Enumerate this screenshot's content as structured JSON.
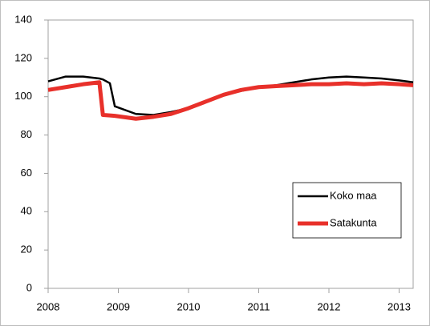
{
  "chart_data": {
    "type": "line",
    "x": [
      2008,
      2008.25,
      2008.5,
      2008.73,
      2008.78,
      2008.88,
      2008.95,
      2009.25,
      2009.5,
      2009.75,
      2010,
      2010.25,
      2010.5,
      2010.75,
      2011,
      2011.25,
      2011.5,
      2011.75,
      2012,
      2012.25,
      2012.5,
      2012.75,
      2013,
      2013.2
    ],
    "series": [
      {
        "name": "Koko maa",
        "color": "#000000",
        "values": [
          108,
          110.5,
          110.5,
          109.5,
          109,
          107,
          95,
          91,
          90.5,
          92,
          94,
          97.5,
          101,
          103,
          105,
          106,
          107.5,
          109,
          110,
          110.5,
          110,
          109.5,
          108.5,
          107.5
        ]
      },
      {
        "name": "Satakunta",
        "color": "#e8302a",
        "values": [
          103.5,
          105,
          106.5,
          107.5,
          90.5,
          90.2,
          90,
          88.5,
          89.5,
          91,
          94,
          97.5,
          101,
          103.5,
          105,
          105.5,
          106,
          106.5,
          106.5,
          107,
          106.5,
          107,
          106.5,
          106
        ]
      }
    ],
    "xlim": [
      2008,
      2013.2
    ],
    "xticks": [
      2008,
      2009,
      2010,
      2011,
      2012,
      2013
    ],
    "ylim": [
      0,
      140
    ],
    "yticks": [
      0,
      20,
      40,
      60,
      80,
      100,
      120,
      140
    ],
    "grid": false,
    "legend": "lower right"
  }
}
